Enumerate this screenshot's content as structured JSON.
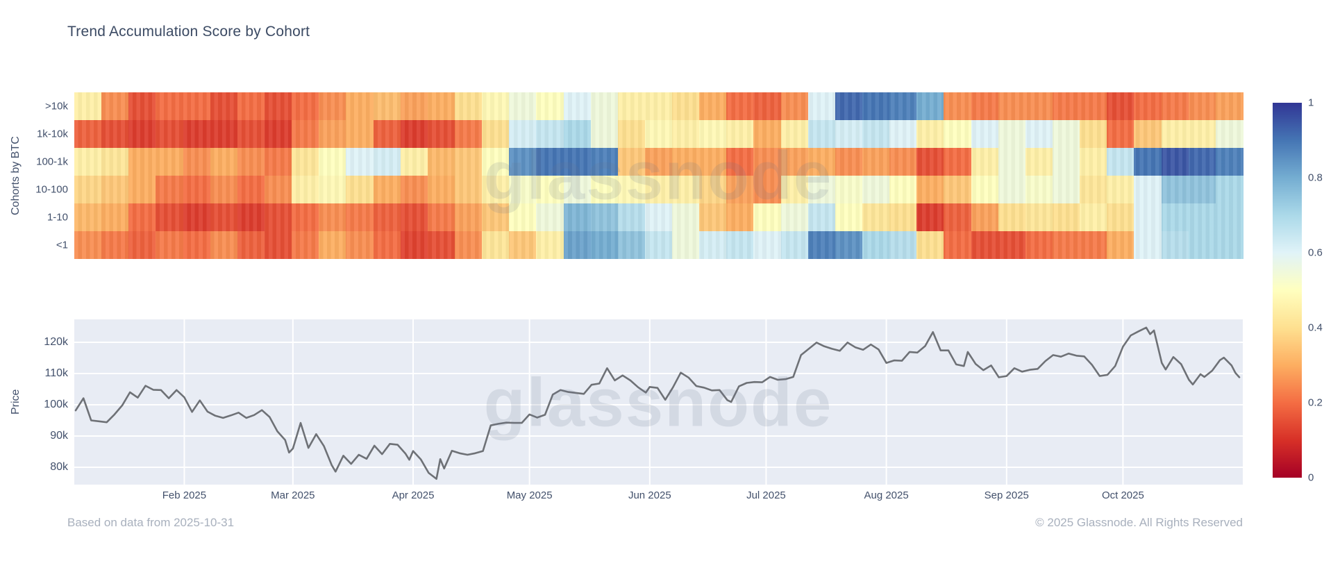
{
  "title": "Trend Accumulation Score by Cohort",
  "watermark": "glassnode",
  "footer": {
    "left": "Based on data from 2025-10-31",
    "right": "© 2025 Glassnode. All Rights Reserved"
  },
  "colors": {
    "plot_bg": "#e8ecf4",
    "grid": "#ffffff",
    "price_line": "#6e7176",
    "text": "#3b4a63",
    "muted_text": "#a8b0bd"
  },
  "colorbar": {
    "ticks": [
      {
        "label": "1",
        "value": 1
      },
      {
        "label": "0.8",
        "value": 0.8
      },
      {
        "label": "0.6",
        "value": 0.6
      },
      {
        "label": "0.4",
        "value": 0.4
      },
      {
        "label": "0.2",
        "value": 0.2
      },
      {
        "label": "0",
        "value": 0
      }
    ]
  },
  "chart_data": [
    {
      "type": "heatmap",
      "title": "Trend Accumulation Score by Cohort",
      "ylabel": "Cohorts by BTC",
      "rows": [
        ">10k",
        "1k-10k",
        "100-1k",
        "10-100",
        "1-10",
        "<1"
      ],
      "zmin": 0,
      "zmax": 1,
      "sampling": "weekly estimates, 43 weeks from early Jan 2025 to 2025-10-31",
      "colorscale_name": "RdYlBu",
      "colorscale": [
        {
          "t": 0.0,
          "c": "#a50026"
        },
        {
          "t": 0.1,
          "c": "#d73027"
        },
        {
          "t": 0.2,
          "c": "#f46d43"
        },
        {
          "t": 0.3,
          "c": "#fdae61"
        },
        {
          "t": 0.4,
          "c": "#fee090"
        },
        {
          "t": 0.5,
          "c": "#ffffbf"
        },
        {
          "t": 0.6,
          "c": "#e0f3f8"
        },
        {
          "t": 0.7,
          "c": "#abd9e9"
        },
        {
          "t": 0.8,
          "c": "#74add1"
        },
        {
          "t": 0.9,
          "c": "#4575b4"
        },
        {
          "t": 1.0,
          "c": "#313695"
        }
      ],
      "series": [
        {
          "name": ">10k",
          "values": [
            0.45,
            0.25,
            0.15,
            0.2,
            0.2,
            0.15,
            0.2,
            0.15,
            0.2,
            0.25,
            0.3,
            0.33,
            0.28,
            0.3,
            0.4,
            0.48,
            0.55,
            0.5,
            0.6,
            0.55,
            0.45,
            0.45,
            0.4,
            0.3,
            0.2,
            0.18,
            0.25,
            0.6,
            0.92,
            0.9,
            0.88,
            0.8,
            0.25,
            0.22,
            0.25,
            0.25,
            0.22,
            0.22,
            0.15,
            0.2,
            0.22,
            0.25,
            0.28
          ]
        },
        {
          "name": "1k-10k",
          "values": [
            0.18,
            0.15,
            0.12,
            0.15,
            0.12,
            0.12,
            0.15,
            0.12,
            0.22,
            0.28,
            0.3,
            0.18,
            0.12,
            0.15,
            0.22,
            0.4,
            0.62,
            0.65,
            0.7,
            0.55,
            0.4,
            0.48,
            0.45,
            0.48,
            0.45,
            0.3,
            0.45,
            0.65,
            0.62,
            0.65,
            0.6,
            0.45,
            0.5,
            0.6,
            0.55,
            0.6,
            0.55,
            0.4,
            0.2,
            0.35,
            0.45,
            0.45,
            0.55
          ]
        },
        {
          "name": "100-1k",
          "values": [
            0.45,
            0.42,
            0.3,
            0.3,
            0.25,
            0.3,
            0.25,
            0.22,
            0.42,
            0.5,
            0.6,
            0.62,
            0.45,
            0.32,
            0.35,
            0.5,
            0.85,
            0.9,
            0.9,
            0.88,
            0.35,
            0.28,
            0.3,
            0.3,
            0.2,
            0.25,
            0.28,
            0.3,
            0.25,
            0.28,
            0.25,
            0.15,
            0.2,
            0.45,
            0.55,
            0.45,
            0.55,
            0.45,
            0.65,
            0.9,
            0.95,
            0.92,
            0.88
          ]
        },
        {
          "name": "10-100",
          "values": [
            0.38,
            0.35,
            0.3,
            0.22,
            0.2,
            0.25,
            0.2,
            0.25,
            0.45,
            0.48,
            0.4,
            0.3,
            0.25,
            0.3,
            0.35,
            0.45,
            0.52,
            0.5,
            0.55,
            0.5,
            0.48,
            0.45,
            0.45,
            0.38,
            0.28,
            0.25,
            0.45,
            0.55,
            0.52,
            0.55,
            0.5,
            0.3,
            0.35,
            0.5,
            0.55,
            0.52,
            0.55,
            0.42,
            0.45,
            0.6,
            0.75,
            0.75,
            0.7
          ]
        },
        {
          "name": "1-10",
          "values": [
            0.32,
            0.3,
            0.2,
            0.15,
            0.12,
            0.15,
            0.12,
            0.15,
            0.2,
            0.25,
            0.22,
            0.18,
            0.15,
            0.22,
            0.28,
            0.35,
            0.5,
            0.55,
            0.78,
            0.75,
            0.68,
            0.6,
            0.55,
            0.35,
            0.3,
            0.5,
            0.55,
            0.65,
            0.5,
            0.42,
            0.4,
            0.12,
            0.18,
            0.28,
            0.4,
            0.42,
            0.4,
            0.45,
            0.4,
            0.6,
            0.7,
            0.7,
            0.7
          ]
        },
        {
          "name": "<1",
          "values": [
            0.25,
            0.22,
            0.18,
            0.22,
            0.2,
            0.25,
            0.18,
            0.15,
            0.22,
            0.3,
            0.25,
            0.2,
            0.13,
            0.15,
            0.25,
            0.42,
            0.35,
            0.45,
            0.82,
            0.8,
            0.75,
            0.65,
            0.55,
            0.62,
            0.65,
            0.6,
            0.65,
            0.88,
            0.85,
            0.7,
            0.68,
            0.4,
            0.2,
            0.15,
            0.15,
            0.2,
            0.22,
            0.22,
            0.3,
            0.6,
            0.68,
            0.7,
            0.7
          ]
        }
      ]
    },
    {
      "type": "line",
      "ylabel": "Price",
      "yticks": [
        {
          "label": "120k",
          "value": 120
        },
        {
          "label": "110k",
          "value": 110
        },
        {
          "label": "100k",
          "value": 100
        },
        {
          "label": "90k",
          "value": 90
        },
        {
          "label": "80k",
          "value": 80
        }
      ],
      "ylim": [
        74,
        127.5
      ],
      "x_total_days": 300,
      "x_months": [
        {
          "label": "Feb 2025",
          "day": 28
        },
        {
          "label": "Mar 2025",
          "day": 56
        },
        {
          "label": "Apr 2025",
          "day": 87
        },
        {
          "label": "May 2025",
          "day": 117
        },
        {
          "label": "Jun 2025",
          "day": 148
        },
        {
          "label": "Jul 2025",
          "day": 178
        },
        {
          "label": "Aug 2025",
          "day": 209
        },
        {
          "label": "Sep 2025",
          "day": 240
        },
        {
          "label": "Oct 2025",
          "day": 270
        }
      ],
      "points": [
        [
          0,
          98.2
        ],
        [
          2,
          102.1
        ],
        [
          4,
          95.0
        ],
        [
          6,
          94.7
        ],
        [
          8,
          94.4
        ],
        [
          10,
          96.9
        ],
        [
          12,
          99.8
        ],
        [
          14,
          104.0
        ],
        [
          16,
          102.3
        ],
        [
          18,
          106.1
        ],
        [
          20,
          104.8
        ],
        [
          22,
          104.7
        ],
        [
          24,
          102.1
        ],
        [
          26,
          104.7
        ],
        [
          28,
          102.4
        ],
        [
          30,
          97.7
        ],
        [
          32,
          101.4
        ],
        [
          34,
          97.8
        ],
        [
          36,
          96.5
        ],
        [
          38,
          95.8
        ],
        [
          40,
          96.6
        ],
        [
          42,
          97.5
        ],
        [
          44,
          95.8
        ],
        [
          46,
          96.7
        ],
        [
          48,
          98.3
        ],
        [
          50,
          96.1
        ],
        [
          52,
          91.5
        ],
        [
          54,
          88.7
        ],
        [
          55,
          84.7
        ],
        [
          56,
          86.0
        ],
        [
          58,
          94.2
        ],
        [
          60,
          86.2
        ],
        [
          62,
          90.6
        ],
        [
          64,
          86.8
        ],
        [
          66,
          80.7
        ],
        [
          67,
          78.6
        ],
        [
          69,
          83.7
        ],
        [
          71,
          81.1
        ],
        [
          73,
          84.0
        ],
        [
          75,
          82.7
        ],
        [
          77,
          86.9
        ],
        [
          79,
          84.2
        ],
        [
          81,
          87.5
        ],
        [
          83,
          87.2
        ],
        [
          85,
          84.4
        ],
        [
          86,
          82.4
        ],
        [
          87,
          85.2
        ],
        [
          89,
          82.5
        ],
        [
          91,
          78.2
        ],
        [
          93,
          76.3
        ],
        [
          94,
          82.6
        ],
        [
          95,
          79.6
        ],
        [
          97,
          85.3
        ],
        [
          99,
          84.5
        ],
        [
          101,
          84.0
        ],
        [
          103,
          84.5
        ],
        [
          105,
          85.2
        ],
        [
          107,
          93.4
        ],
        [
          109,
          93.9
        ],
        [
          111,
          94.3
        ],
        [
          113,
          94.2
        ],
        [
          115,
          94.2
        ],
        [
          117,
          96.9
        ],
        [
          119,
          95.9
        ],
        [
          121,
          96.8
        ],
        [
          123,
          103.3
        ],
        [
          125,
          104.7
        ],
        [
          127,
          104.1
        ],
        [
          129,
          103.8
        ],
        [
          131,
          103.5
        ],
        [
          133,
          106.4
        ],
        [
          135,
          106.8
        ],
        [
          137,
          111.7
        ],
        [
          139,
          107.8
        ],
        [
          141,
          109.4
        ],
        [
          143,
          107.8
        ],
        [
          145,
          105.6
        ],
        [
          147,
          103.9
        ],
        [
          148,
          105.7
        ],
        [
          150,
          105.4
        ],
        [
          152,
          101.6
        ],
        [
          154,
          105.6
        ],
        [
          156,
          110.3
        ],
        [
          158,
          108.7
        ],
        [
          160,
          106.0
        ],
        [
          162,
          105.5
        ],
        [
          164,
          104.6
        ],
        [
          166,
          104.7
        ],
        [
          168,
          101.5
        ],
        [
          169,
          100.9
        ],
        [
          171,
          105.9
        ],
        [
          173,
          107.0
        ],
        [
          175,
          107.3
        ],
        [
          177,
          107.2
        ],
        [
          179,
          108.9
        ],
        [
          181,
          108.0
        ],
        [
          183,
          108.2
        ],
        [
          185,
          108.9
        ],
        [
          187,
          115.9
        ],
        [
          189,
          117.9
        ],
        [
          191,
          119.9
        ],
        [
          193,
          118.7
        ],
        [
          195,
          117.9
        ],
        [
          197,
          117.3
        ],
        [
          199,
          119.9
        ],
        [
          201,
          118.4
        ],
        [
          203,
          117.6
        ],
        [
          205,
          119.3
        ],
        [
          207,
          117.7
        ],
        [
          209,
          113.4
        ],
        [
          211,
          114.2
        ],
        [
          213,
          114.1
        ],
        [
          215,
          116.9
        ],
        [
          217,
          116.7
        ],
        [
          219,
          118.8
        ],
        [
          221,
          123.3
        ],
        [
          223,
          117.4
        ],
        [
          225,
          117.4
        ],
        [
          227,
          112.9
        ],
        [
          229,
          112.4
        ],
        [
          230,
          116.9
        ],
        [
          232,
          113.1
        ],
        [
          234,
          111.1
        ],
        [
          236,
          112.6
        ],
        [
          238,
          108.8
        ],
        [
          240,
          109.2
        ],
        [
          242,
          111.7
        ],
        [
          244,
          110.6
        ],
        [
          246,
          111.2
        ],
        [
          248,
          111.5
        ],
        [
          250,
          114.0
        ],
        [
          252,
          115.9
        ],
        [
          254,
          115.4
        ],
        [
          256,
          116.4
        ],
        [
          258,
          115.7
        ],
        [
          260,
          115.5
        ],
        [
          262,
          112.8
        ],
        [
          264,
          109.2
        ],
        [
          266,
          109.6
        ],
        [
          268,
          112.4
        ],
        [
          270,
          118.6
        ],
        [
          272,
          122.2
        ],
        [
          274,
          123.5
        ],
        [
          276,
          124.7
        ],
        [
          277,
          122.6
        ],
        [
          278,
          123.8
        ],
        [
          280,
          113.4
        ],
        [
          281,
          111.3
        ],
        [
          283,
          115.3
        ],
        [
          285,
          113.0
        ],
        [
          287,
          108.0
        ],
        [
          288,
          106.5
        ],
        [
          290,
          109.8
        ],
        [
          291,
          108.9
        ],
        [
          293,
          110.9
        ],
        [
          295,
          114.3
        ],
        [
          296,
          115.1
        ],
        [
          298,
          112.6
        ],
        [
          299,
          110.2
        ],
        [
          300,
          108.8
        ]
      ]
    }
  ]
}
